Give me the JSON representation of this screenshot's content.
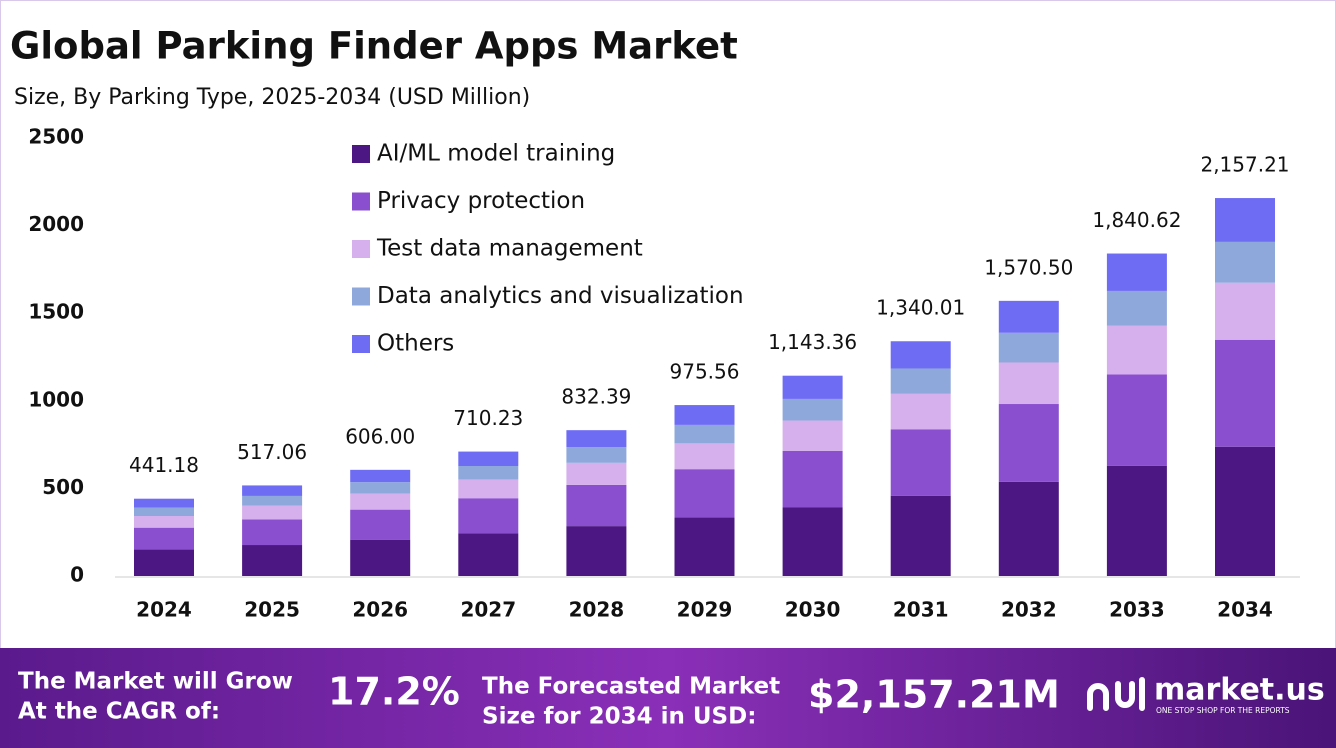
{
  "chart_data": {
    "type": "stacked-bar",
    "title": "Global Parking Finder Apps Market",
    "subtitle": "Size, By Parking Type, 2025-2034 (USD Million)",
    "categories": [
      "2024",
      "2025",
      "2026",
      "2027",
      "2028",
      "2029",
      "2030",
      "2031",
      "2032",
      "2033",
      "2034"
    ],
    "series": [
      {
        "name": "AI/ML model training",
        "color": "#4c1782",
        "values": [
          150.9,
          176.8,
          207.3,
          242.9,
          284.7,
          333.6,
          391.0,
          458.3,
          537.1,
          629.5,
          737.8
        ]
      },
      {
        "name": "Privacy protection",
        "color": "#8a4fcf",
        "values": [
          124.9,
          146.3,
          171.5,
          201.0,
          235.6,
          276.1,
          323.6,
          379.2,
          444.5,
          520.9,
          610.5
        ]
      },
      {
        "name": "Test data management",
        "color": "#d6b0ec",
        "values": [
          66.6,
          78.1,
          91.5,
          107.2,
          125.7,
          147.3,
          172.6,
          202.3,
          237.1,
          277.9,
          325.7
        ]
      },
      {
        "name": "Data analytics and visualization",
        "color": "#8fa8dc",
        "values": [
          47.6,
          55.8,
          65.4,
          76.7,
          89.9,
          105.4,
          123.5,
          144.7,
          169.6,
          198.8,
          233.0
        ]
      },
      {
        "name": "Others",
        "color": "#6f6cf4",
        "values": [
          51.2,
          60.0,
          70.3,
          82.4,
          96.5,
          113.2,
          132.6,
          155.4,
          182.2,
          213.5,
          250.2
        ]
      }
    ],
    "totals": [
      441.18,
      517.06,
      606.0,
      710.23,
      832.39,
      975.56,
      1143.36,
      1340.01,
      1570.5,
      1840.62,
      2157.21
    ],
    "total_labels": [
      "441.18",
      "517.06",
      "606.00",
      "710.23",
      "832.39",
      "975.56",
      "1,143.36",
      "1,340.01",
      "1,570.50",
      "1,840.62",
      "2,157.21"
    ],
    "ylim": [
      0,
      2500
    ],
    "yticks": [
      0,
      500,
      1000,
      1500,
      2000,
      2500
    ],
    "grid": false
  },
  "footer": {
    "cagr_text": [
      "The Market will Grow",
      "At the CAGR of:"
    ],
    "cagr_value": "17.2%",
    "forecast_text": [
      "The Forecasted Market",
      "Size for 2034 in USD:"
    ],
    "forecast_value": "$2,157.21M",
    "brand": "market.us",
    "tagline": "ONE STOP SHOP FOR THE REPORTS"
  }
}
